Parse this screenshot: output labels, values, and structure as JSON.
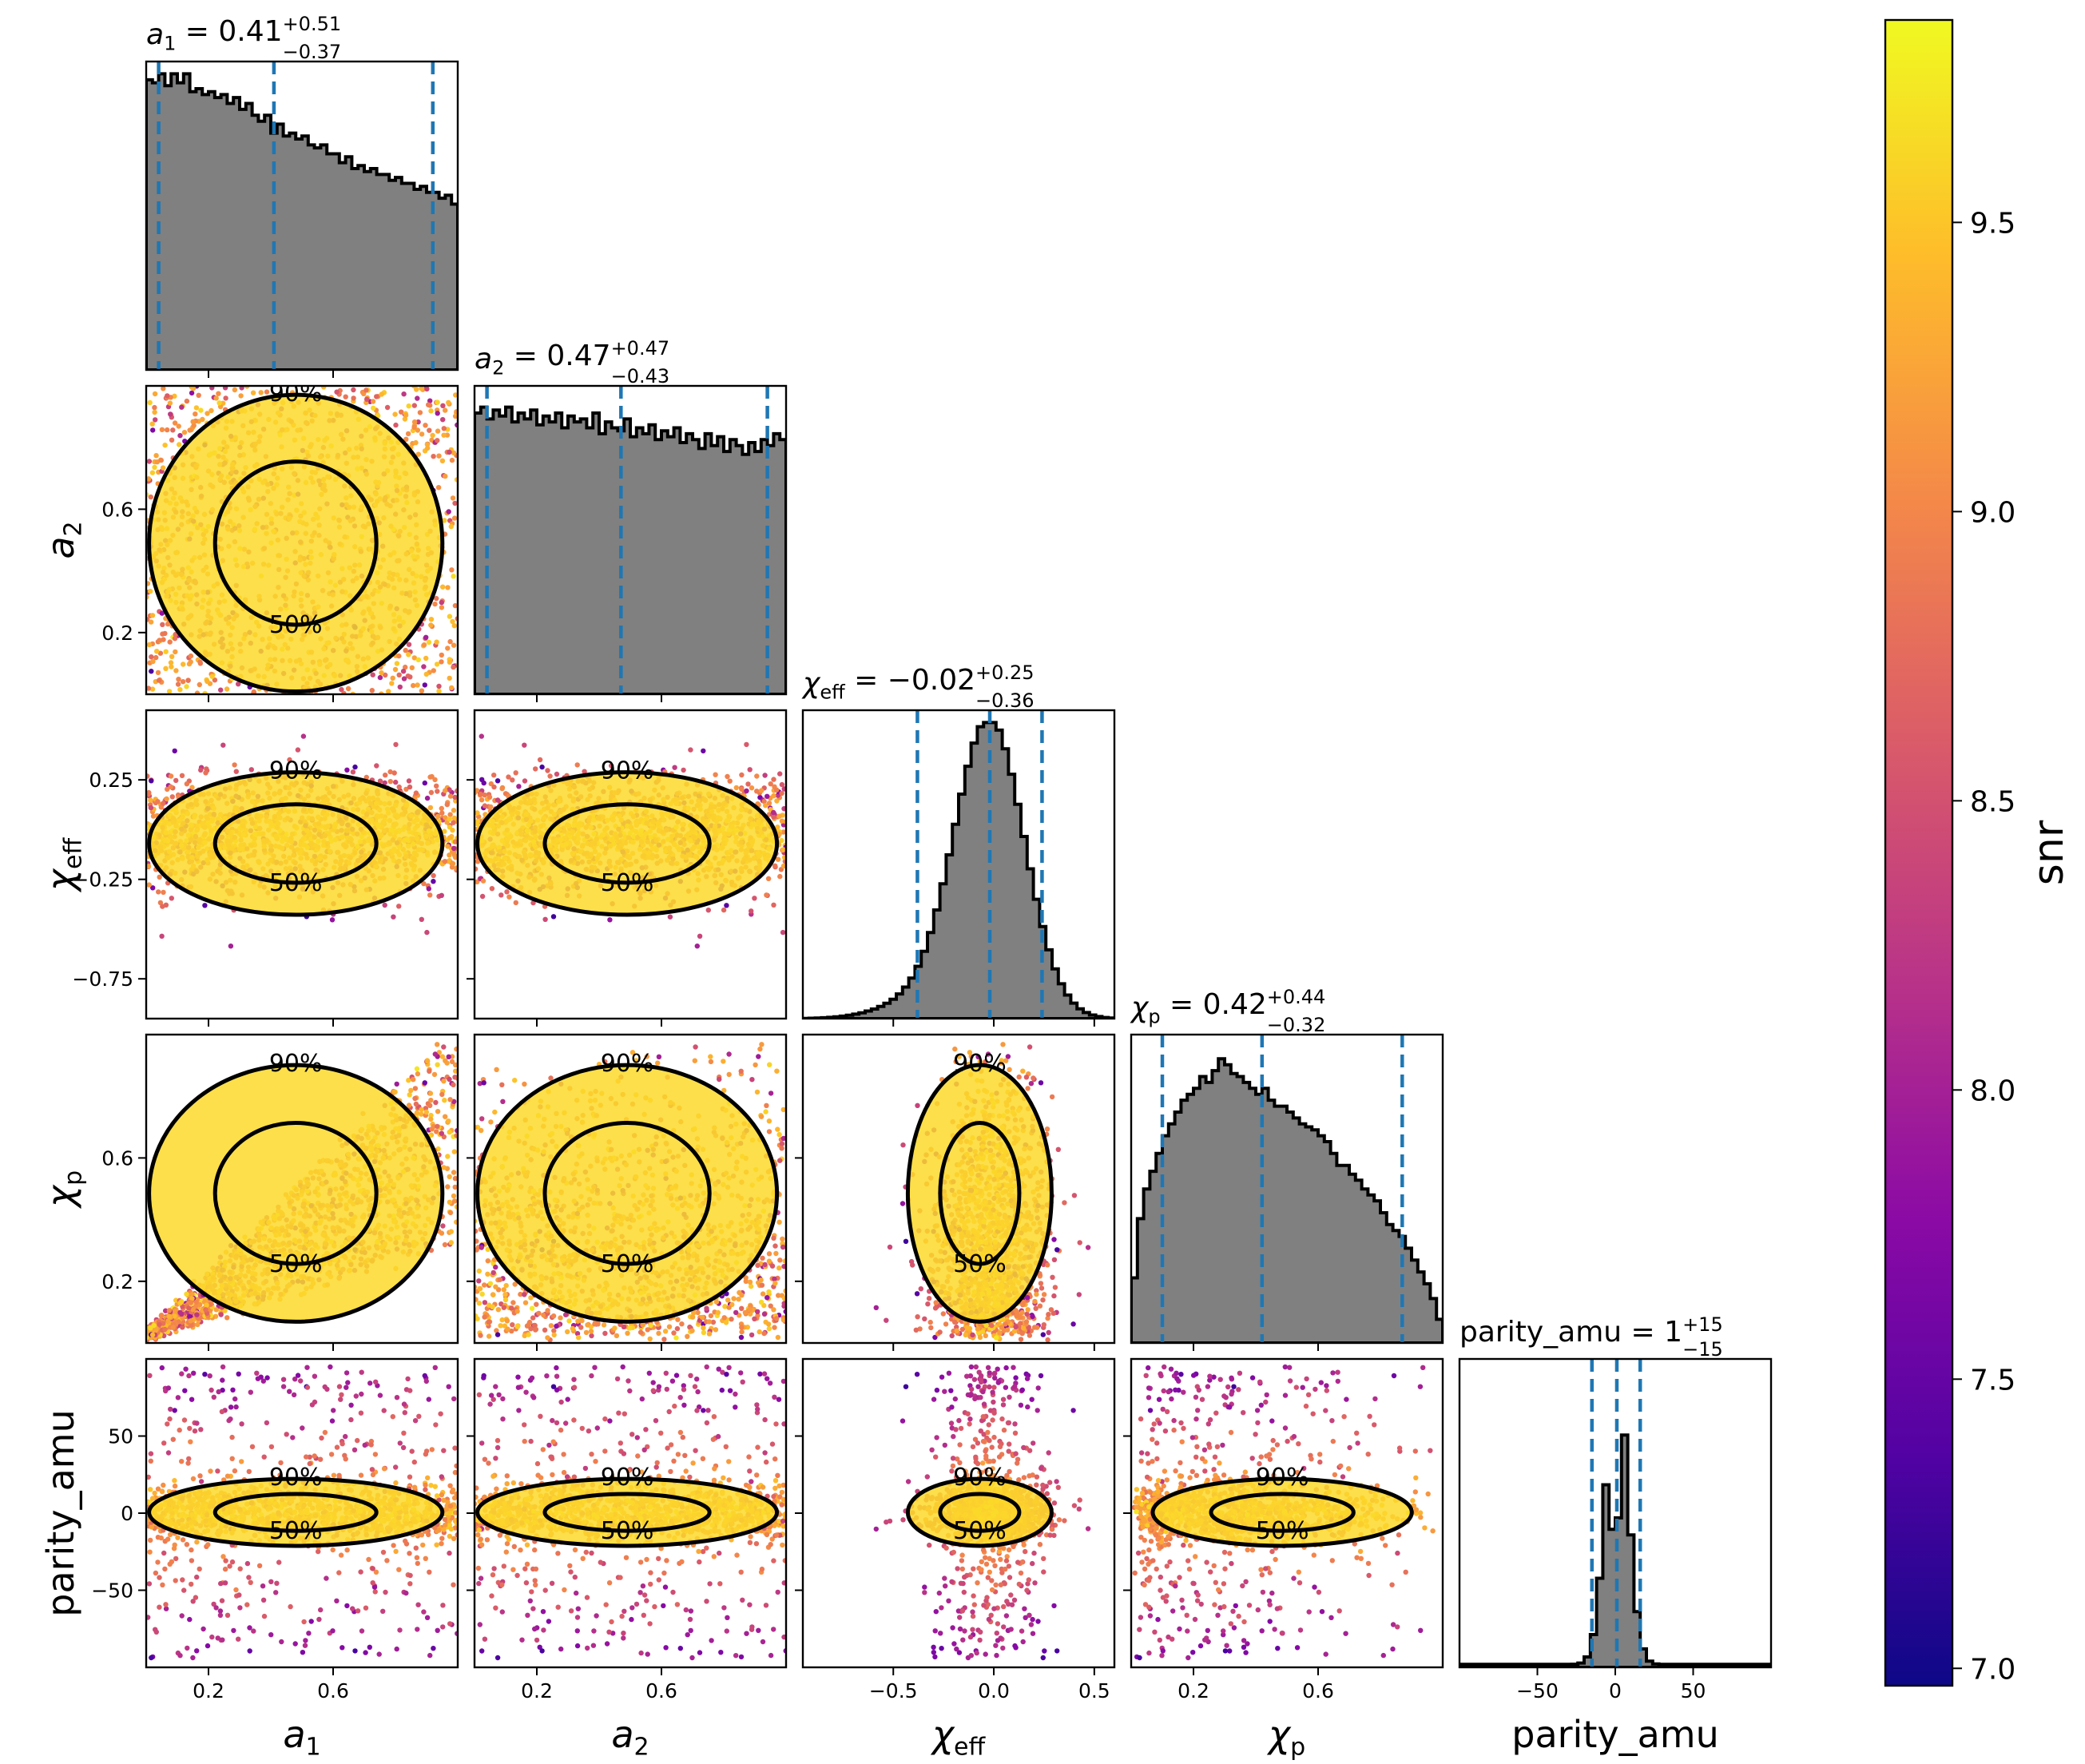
{
  "chart_data": {
    "type": "scatter",
    "kind": "corner-plot",
    "parameters": [
      {
        "key": "a1",
        "label": "a_1",
        "label_main": "a",
        "label_sub": "1",
        "range": [
          0,
          1
        ],
        "ticks": [
          0.2,
          0.6
        ],
        "tick_labels": [
          "0.2",
          "0.6"
        ],
        "quantiles": [
          0.04,
          0.41,
          0.92
        ],
        "title": {
          "value": "0.41",
          "plus": "+0.51",
          "minus": "−0.37"
        },
        "hist": [
          0.98,
          0.97,
          1.0,
          0.96,
          1.0,
          0.97,
          1.0,
          0.94,
          0.95,
          0.93,
          0.94,
          0.92,
          0.93,
          0.9,
          0.92,
          0.88,
          0.9,
          0.86,
          0.84,
          0.86,
          0.8,
          0.83,
          0.79,
          0.8,
          0.78,
          0.79,
          0.76,
          0.75,
          0.76,
          0.73,
          0.73,
          0.7,
          0.72,
          0.68,
          0.69,
          0.67,
          0.68,
          0.66,
          0.66,
          0.64,
          0.65,
          0.63,
          0.63,
          0.61,
          0.62,
          0.6,
          0.6,
          0.58,
          0.59,
          0.56
        ]
      },
      {
        "key": "a2",
        "label": "a_2",
        "label_main": "a",
        "label_sub": "2",
        "range": [
          0,
          1
        ],
        "ticks": [
          0.2,
          0.6
        ],
        "tick_labels": [
          "0.2",
          "0.6"
        ],
        "quantiles": [
          0.04,
          0.47,
          0.94
        ],
        "title": {
          "value": "0.47",
          "plus": "+0.47",
          "minus": "−0.43"
        },
        "hist": [
          0.95,
          0.97,
          0.93,
          0.96,
          0.94,
          0.97,
          0.92,
          0.95,
          0.93,
          0.96,
          0.91,
          0.94,
          0.92,
          0.95,
          0.9,
          0.94,
          0.92,
          0.93,
          0.9,
          0.95,
          0.88,
          0.92,
          0.9,
          0.89,
          0.93,
          0.87,
          0.9,
          0.88,
          0.91,
          0.86,
          0.89,
          0.87,
          0.9,
          0.85,
          0.88,
          0.86,
          0.83,
          0.88,
          0.84,
          0.87,
          0.82,
          0.86,
          0.84,
          0.81,
          0.85,
          0.82,
          0.86,
          0.84,
          0.88,
          0.86
        ]
      },
      {
        "key": "chi_eff",
        "label": "χ_eff",
        "label_main": "χ",
        "label_sub": "eff",
        "range": [
          -0.95,
          0.6
        ],
        "ticks": [
          -0.5,
          0.0,
          0.5
        ],
        "tick_labels": [
          "−0.5",
          "0.0",
          "0.5"
        ],
        "ticks_y": [
          0.25,
          -0.25,
          -0.75
        ],
        "tick_labels_y": [
          "0.25",
          "−0.25",
          "−0.75"
        ],
        "quantiles": [
          -0.38,
          -0.02,
          0.24
        ],
        "title": {
          "value": "−0.02",
          "plus": "+0.25",
          "minus": "−0.36"
        }
      },
      {
        "key": "chi_p",
        "label": "χ_p",
        "label_main": "χ",
        "label_sub": "p",
        "range": [
          0,
          1
        ],
        "ticks": [
          0.2,
          0.6
        ],
        "tick_labels": [
          "0.2",
          "0.6"
        ],
        "quantiles": [
          0.1,
          0.42,
          0.87
        ],
        "title": {
          "value": "0.42",
          "plus": "+0.44",
          "minus": "−0.32"
        },
        "hist": [
          0.22,
          0.42,
          0.52,
          0.58,
          0.64,
          0.7,
          0.74,
          0.78,
          0.82,
          0.84,
          0.86,
          0.9,
          0.88,
          0.92,
          0.96,
          0.94,
          0.91,
          0.9,
          0.88,
          0.86,
          0.84,
          0.86,
          0.82,
          0.8,
          0.8,
          0.78,
          0.76,
          0.74,
          0.73,
          0.72,
          0.7,
          0.68,
          0.64,
          0.6,
          0.6,
          0.57,
          0.55,
          0.52,
          0.5,
          0.48,
          0.44,
          0.4,
          0.38,
          0.36,
          0.32,
          0.28,
          0.24,
          0.2,
          0.15,
          0.08
        ]
      },
      {
        "key": "parity_amu",
        "label": "parity_amu",
        "label_main": "parity_amu",
        "label_sub": "",
        "range": [
          -100,
          100
        ],
        "ticks": [
          -50,
          0,
          50
        ],
        "tick_labels": [
          "−50",
          "0",
          "50"
        ],
        "ticks_y": [
          50,
          0,
          -50
        ],
        "tick_labels_y": [
          "50",
          "0",
          "−50"
        ],
        "quantiles": [
          -15,
          1,
          16
        ],
        "title": {
          "value": "1",
          "plus": "+15",
          "minus": "−15"
        }
      }
    ],
    "contour_levels": [
      "50%",
      "90%"
    ],
    "quantile_line_color": "#1f77b4",
    "hist_fill_color": "#808080",
    "colorbar": {
      "label": "snr",
      "colormap": "plasma",
      "range": [
        6.97,
        9.85
      ],
      "ticks": [
        7.0,
        7.5,
        8.0,
        8.5,
        9.0,
        9.5
      ],
      "tick_labels": [
        "7.0",
        "7.5",
        "8.0",
        "8.5",
        "9.0",
        "9.5"
      ],
      "colors": [
        "#0d0887",
        "#5302a3",
        "#8b0aa5",
        "#b83289",
        "#db5c68",
        "#f48849",
        "#febd2a",
        "#f0f921"
      ]
    },
    "grid": false
  }
}
